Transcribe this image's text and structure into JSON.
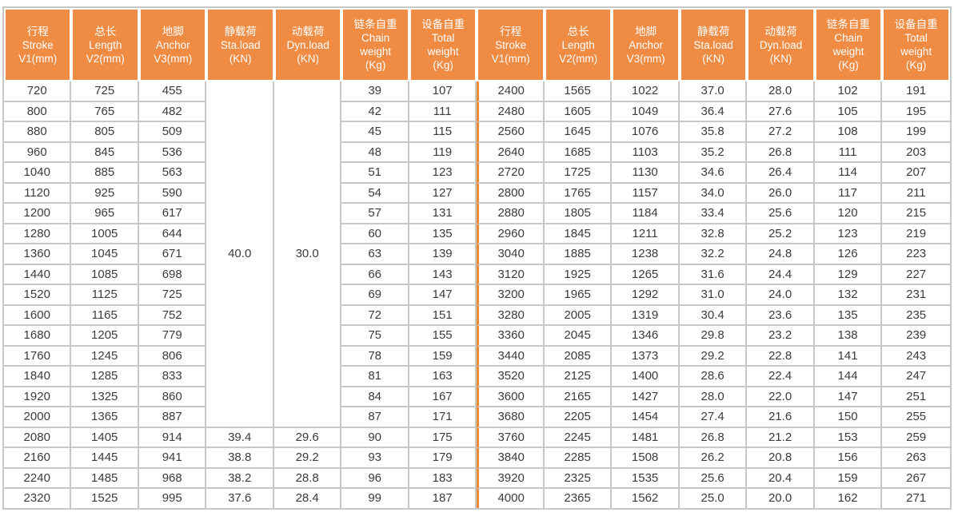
{
  "colors": {
    "header_bg": "#EF8B43",
    "header_text": "#FFFFFF",
    "divider_orange": "#EE8A35",
    "grid_line": "#C8C8C8",
    "cell_text": "#3E3A39",
    "cell_bg": "#FFFFFF"
  },
  "table": {
    "columns": [
      {
        "key": "stroke",
        "lines": [
          "行程",
          "Stroke",
          "V1(mm)"
        ]
      },
      {
        "key": "length",
        "lines": [
          "总长",
          "Length",
          "V2(mm)"
        ]
      },
      {
        "key": "anchor",
        "lines": [
          "地脚",
          "Anchor",
          "V3(mm)"
        ]
      },
      {
        "key": "sta-load",
        "lines": [
          "静载荷",
          "Sta.load",
          "(KN)"
        ]
      },
      {
        "key": "dyn-load",
        "lines": [
          "动载荷",
          "Dyn.load",
          "(KN)"
        ]
      },
      {
        "key": "chain-weight",
        "lines": [
          "链条自重",
          "Chain",
          "weight",
          "(Kg)"
        ]
      },
      {
        "key": "total-weight",
        "lines": [
          "设备自重",
          "Total",
          "weight",
          "(Kg)"
        ]
      }
    ],
    "left_half": {
      "merged_sta_load": {
        "value": "40.0",
        "row_span": 17
      },
      "merged_dyn_load": {
        "value": "30.0",
        "row_span": 17
      },
      "rows": [
        [
          "720",
          "725",
          "455",
          null,
          null,
          "39",
          "107"
        ],
        [
          "800",
          "765",
          "482",
          null,
          null,
          "42",
          "111"
        ],
        [
          "880",
          "805",
          "509",
          null,
          null,
          "45",
          "115"
        ],
        [
          "960",
          "845",
          "536",
          null,
          null,
          "48",
          "119"
        ],
        [
          "1040",
          "885",
          "563",
          null,
          null,
          "51",
          "123"
        ],
        [
          "1120",
          "925",
          "590",
          null,
          null,
          "54",
          "127"
        ],
        [
          "1200",
          "965",
          "617",
          null,
          null,
          "57",
          "131"
        ],
        [
          "1280",
          "1005",
          "644",
          null,
          null,
          "60",
          "135"
        ],
        [
          "1360",
          "1045",
          "671",
          null,
          null,
          "63",
          "139"
        ],
        [
          "1440",
          "1085",
          "698",
          null,
          null,
          "66",
          "143"
        ],
        [
          "1520",
          "1125",
          "725",
          null,
          null,
          "69",
          "147"
        ],
        [
          "1600",
          "1165",
          "752",
          null,
          null,
          "72",
          "151"
        ],
        [
          "1680",
          "1205",
          "779",
          null,
          null,
          "75",
          "155"
        ],
        [
          "1760",
          "1245",
          "806",
          null,
          null,
          "78",
          "159"
        ],
        [
          "1840",
          "1285",
          "833",
          null,
          null,
          "81",
          "163"
        ],
        [
          "1920",
          "1325",
          "860",
          null,
          null,
          "84",
          "167"
        ],
        [
          "2000",
          "1365",
          "887",
          null,
          null,
          "87",
          "171"
        ],
        [
          "2080",
          "1405",
          "914",
          "39.4",
          "29.6",
          "90",
          "175"
        ],
        [
          "2160",
          "1445",
          "941",
          "38.8",
          "29.2",
          "93",
          "179"
        ],
        [
          "2240",
          "1485",
          "968",
          "38.2",
          "28.8",
          "96",
          "183"
        ],
        [
          "2320",
          "1525",
          "995",
          "37.6",
          "28.4",
          "99",
          "187"
        ]
      ]
    },
    "right_half": {
      "rows": [
        [
          "2400",
          "1565",
          "1022",
          "37.0",
          "28.0",
          "102",
          "191"
        ],
        [
          "2480",
          "1605",
          "1049",
          "36.4",
          "27.6",
          "105",
          "195"
        ],
        [
          "2560",
          "1645",
          "1076",
          "35.8",
          "27.2",
          "108",
          "199"
        ],
        [
          "2640",
          "1685",
          "1103",
          "35.2",
          "26.8",
          "111",
          "203"
        ],
        [
          "2720",
          "1725",
          "1130",
          "34.6",
          "26.4",
          "114",
          "207"
        ],
        [
          "2800",
          "1765",
          "1157",
          "34.0",
          "26.0",
          "117",
          "211"
        ],
        [
          "2880",
          "1805",
          "1184",
          "33.4",
          "25.6",
          "120",
          "215"
        ],
        [
          "2960",
          "1845",
          "1211",
          "32.8",
          "25.2",
          "123",
          "219"
        ],
        [
          "3040",
          "1885",
          "1238",
          "32.2",
          "24.8",
          "126",
          "223"
        ],
        [
          "3120",
          "1925",
          "1265",
          "31.6",
          "24.4",
          "129",
          "227"
        ],
        [
          "3200",
          "1965",
          "1292",
          "31.0",
          "24.0",
          "132",
          "231"
        ],
        [
          "3280",
          "2005",
          "1319",
          "30.4",
          "23.6",
          "135",
          "235"
        ],
        [
          "3360",
          "2045",
          "1346",
          "29.8",
          "23.2",
          "138",
          "239"
        ],
        [
          "3440",
          "2085",
          "1373",
          "29.2",
          "22.8",
          "141",
          "243"
        ],
        [
          "3520",
          "2125",
          "1400",
          "28.6",
          "22.4",
          "144",
          "247"
        ],
        [
          "3600",
          "2165",
          "1427",
          "28.0",
          "22.0",
          "147",
          "251"
        ],
        [
          "3680",
          "2205",
          "1454",
          "27.4",
          "21.6",
          "150",
          "255"
        ],
        [
          "3760",
          "2245",
          "1481",
          "26.8",
          "21.2",
          "153",
          "259"
        ],
        [
          "3840",
          "2285",
          "1508",
          "26.2",
          "20.8",
          "156",
          "263"
        ],
        [
          "3920",
          "2325",
          "1535",
          "25.6",
          "20.4",
          "159",
          "267"
        ],
        [
          "4000",
          "2365",
          "1562",
          "25.0",
          "20.0",
          "162",
          "271"
        ]
      ]
    }
  }
}
